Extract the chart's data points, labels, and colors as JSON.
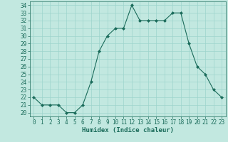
{
  "x": [
    0,
    1,
    2,
    3,
    4,
    5,
    6,
    7,
    8,
    9,
    10,
    11,
    12,
    13,
    14,
    15,
    16,
    17,
    18,
    19,
    20,
    21,
    22,
    23
  ],
  "y": [
    22,
    21,
    21,
    21,
    20,
    20,
    21,
    24,
    28,
    30,
    31,
    31,
    34,
    32,
    32,
    32,
    32,
    33,
    33,
    29,
    26,
    25,
    23,
    22
  ],
  "line_color": "#1a6b5a",
  "marker_color": "#1a6b5a",
  "bg_color": "#c2e8e0",
  "grid_color": "#9dd4cc",
  "xlabel": "Humidex (Indice chaleur)",
  "xlabel_fontsize": 6.5,
  "ylabel_ticks": [
    20,
    21,
    22,
    23,
    24,
    25,
    26,
    27,
    28,
    29,
    30,
    31,
    32,
    33,
    34
  ],
  "xlim": [
    -0.5,
    23.5
  ],
  "ylim": [
    19.5,
    34.5
  ],
  "tick_fontsize": 5.5,
  "label_color": "#1a6b5a"
}
